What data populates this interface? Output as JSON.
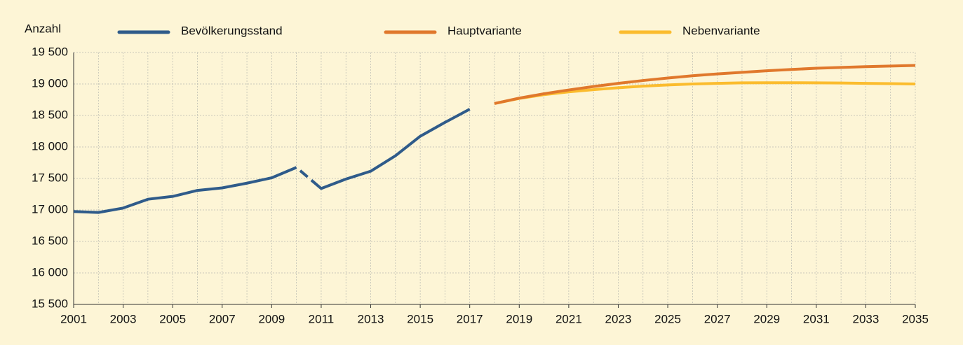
{
  "chart_data": {
    "type": "line",
    "ylabel": "Anzahl",
    "xlim": [
      2001,
      2035
    ],
    "xticks": [
      2001,
      2003,
      2005,
      2007,
      2009,
      2011,
      2013,
      2015,
      2017,
      2019,
      2021,
      2023,
      2025,
      2027,
      2029,
      2031,
      2033,
      2035
    ],
    "ylim": [
      15500,
      19500
    ],
    "yticks": [
      {
        "value": 15500,
        "label": "15 500"
      },
      {
        "value": 16000,
        "label": "16 000"
      },
      {
        "value": 16500,
        "label": "16 500"
      },
      {
        "value": 17000,
        "label": "17 000"
      },
      {
        "value": 17500,
        "label": "17 500"
      },
      {
        "value": 18000,
        "label": "18 000"
      },
      {
        "value": 18500,
        "label": "18 500"
      },
      {
        "value": 19000,
        "label": "19 000"
      },
      {
        "value": 19500,
        "label": "19 500"
      }
    ],
    "grid": true,
    "legend": "top",
    "series": [
      {
        "name": "Bevölkerungsstand",
        "color": "#2f5b8a",
        "x": [
          2001,
          2002,
          2003,
          2004,
          2005,
          2006,
          2007,
          2008,
          2009,
          2010,
          2011,
          2012,
          2013,
          2014,
          2015,
          2016,
          2017
        ],
        "values": [
          16975,
          16960,
          17030,
          17170,
          17215,
          17310,
          17350,
          17425,
          17510,
          17675,
          17340,
          17490,
          17615,
          17860,
          18170,
          18390,
          18600
        ],
        "dashed_between": [
          2010,
          2011
        ]
      },
      {
        "name": "Hauptvariante",
        "color": "#e0782c",
        "x": [
          2018,
          2019,
          2020,
          2021,
          2022,
          2023,
          2024,
          2025,
          2026,
          2027,
          2028,
          2029,
          2030,
          2031,
          2032,
          2033,
          2034,
          2035
        ],
        "values": [
          18690,
          18775,
          18845,
          18905,
          18960,
          19010,
          19055,
          19095,
          19130,
          19160,
          19185,
          19210,
          19230,
          19250,
          19262,
          19275,
          19285,
          19295
        ]
      },
      {
        "name": "Nebenvariante",
        "color": "#fbbc2e",
        "x": [
          2018,
          2019,
          2020,
          2021,
          2022,
          2023,
          2024,
          2025,
          2026,
          2027,
          2028,
          2029,
          2030,
          2031,
          2032,
          2033,
          2034,
          2035
        ],
        "values": [
          18690,
          18770,
          18830,
          18875,
          18910,
          18940,
          18965,
          18985,
          19000,
          19010,
          19018,
          19020,
          19020,
          19018,
          19015,
          19010,
          19005,
          19000
        ]
      }
    ]
  }
}
